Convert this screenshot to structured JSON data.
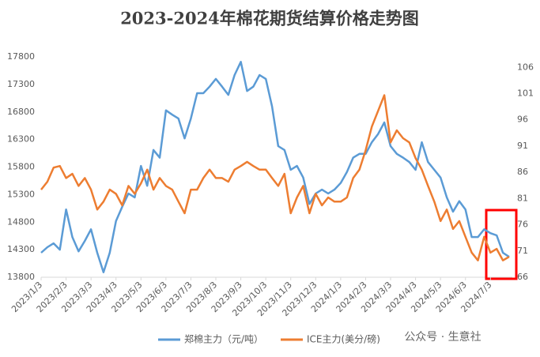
{
  "chart_data": {
    "type": "line",
    "title": "2023-2024年棉花期货结算价格走势图",
    "watermark": "公众号 · 生意社",
    "categories": [
      "2023/1/3",
      null,
      null,
      null,
      "2023/2/3",
      null,
      null,
      null,
      "2023/3/3",
      null,
      null,
      null,
      "2023/4/3",
      null,
      null,
      null,
      "2023/5/3",
      null,
      null,
      null,
      "2023/6/3",
      null,
      null,
      null,
      "2023/7/3",
      null,
      null,
      null,
      "2023/8/3",
      null,
      null,
      null,
      "2023/9/3",
      null,
      null,
      null,
      "2023/10/3",
      null,
      null,
      null,
      "2023/11/3",
      null,
      null,
      null,
      "2023/12/3",
      null,
      null,
      null,
      "2024/1/3",
      null,
      null,
      null,
      "2024/2/3",
      null,
      null,
      null,
      "2024/3/3",
      null,
      null,
      null,
      "2024/4/3",
      null,
      null,
      null,
      "2024/5/3",
      null,
      null,
      null,
      "2024/6/3",
      null,
      null,
      null,
      "2024/7/3",
      null,
      null,
      null
    ],
    "series": [
      {
        "name": "郑棉主力（元/吨）",
        "color": "#5b9bd5",
        "values": [
          14245,
          14345,
          14415,
          14300,
          15030,
          14530,
          14270,
          14460,
          14670,
          14245,
          13890,
          14245,
          14820,
          15080,
          15320,
          15250,
          15820,
          15460,
          16110,
          15970,
          16830,
          16750,
          16680,
          16320,
          16680,
          17140,
          17140,
          17260,
          17400,
          17260,
          17110,
          17470,
          17710,
          17180,
          17260,
          17470,
          17400,
          16900,
          16180,
          16110,
          15750,
          15820,
          15610,
          15130,
          15320,
          15390,
          15320,
          15390,
          15510,
          15710,
          15970,
          16040,
          16040,
          16250,
          16400,
          16610,
          16180,
          16040,
          15970,
          15890,
          15750,
          16250,
          15890,
          15750,
          15610,
          15250,
          14990,
          15180,
          15030,
          14530,
          14530,
          14670,
          14600,
          14560,
          14245,
          14170
        ]
      },
      {
        "name": "ICE主力(美分/磅)",
        "color": "#ed7d31",
        "axis": "y2",
        "values": [
          82.7,
          84.2,
          86.9,
          87.2,
          84.9,
          85.7,
          83.4,
          84.9,
          82.7,
          78.9,
          80.4,
          82.7,
          81.9,
          79.7,
          83.4,
          81.9,
          83.9,
          86.5,
          82.7,
          84.9,
          83.4,
          82.7,
          80.4,
          78.2,
          82.7,
          82.7,
          84.9,
          86.5,
          84.9,
          84.9,
          84.2,
          86.5,
          87.2,
          88.0,
          87.2,
          86.5,
          86.5,
          84.9,
          83.4,
          85.7,
          78.2,
          81.2,
          83.4,
          78.2,
          81.9,
          79.7,
          81.2,
          80.4,
          80.4,
          81.2,
          84.9,
          86.5,
          90.2,
          94.7,
          97.7,
          100.7,
          91.7,
          94.0,
          92.5,
          91.7,
          88.7,
          86.5,
          83.4,
          80.4,
          76.7,
          78.9,
          75.2,
          76.7,
          73.7,
          70.7,
          69.2,
          73.7,
          70.7,
          71.4,
          69.2,
          69.9
        ]
      }
    ],
    "ylim": [
      13800,
      17800
    ],
    "yticks": [
      13800,
      14300,
      14800,
      15300,
      15800,
      16300,
      16800,
      17300,
      17800
    ],
    "y2lim": [
      66,
      108
    ],
    "y2ticks": [
      66,
      71,
      76,
      81,
      86,
      91,
      96,
      101,
      106
    ],
    "grid": false,
    "legend": "bottom"
  }
}
